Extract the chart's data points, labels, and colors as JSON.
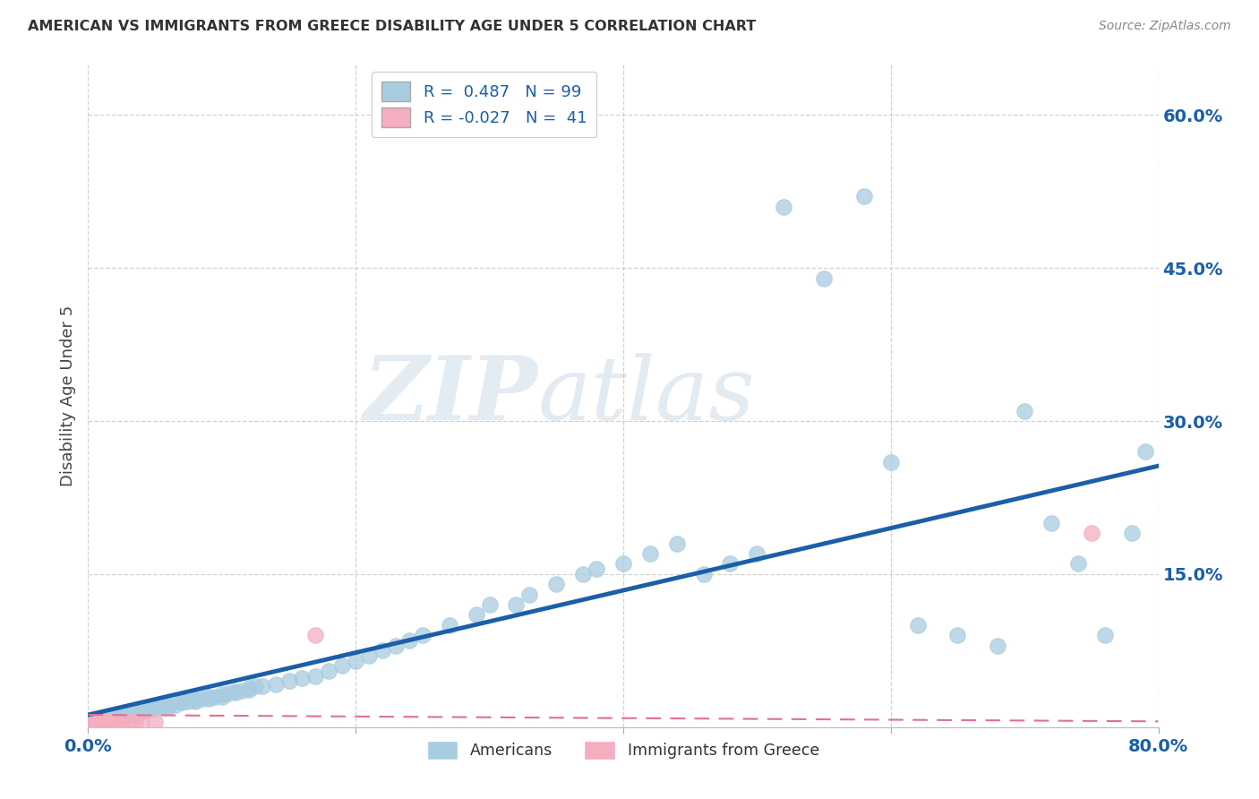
{
  "title": "AMERICAN VS IMMIGRANTS FROM GREECE DISABILITY AGE UNDER 5 CORRELATION CHART",
  "source": "Source: ZipAtlas.com",
  "ylabel": "Disability Age Under 5",
  "xlim": [
    0.0,
    0.8
  ],
  "ylim": [
    0.0,
    0.65
  ],
  "american_color": "#a8cce0",
  "greece_color": "#f4aec0",
  "regression_american_color": "#1a5fa8",
  "regression_greece_color": "#e07090",
  "R_american": 0.487,
  "N_american": 99,
  "R_greece": -0.027,
  "N_greece": 41,
  "watermark_zip": "ZIP",
  "watermark_atlas": "atlas",
  "background_color": "#ffffff",
  "grid_color": "#cccccc",
  "tick_color": "#1a5fa8",
  "title_color": "#333333",
  "source_color": "#888888",
  "am_x": [
    0.005,
    0.006,
    0.007,
    0.008,
    0.009,
    0.01,
    0.01,
    0.01,
    0.012,
    0.013,
    0.014,
    0.015,
    0.016,
    0.017,
    0.018,
    0.02,
    0.02,
    0.02,
    0.022,
    0.024,
    0.025,
    0.027,
    0.028,
    0.03,
    0.03,
    0.032,
    0.034,
    0.036,
    0.038,
    0.04,
    0.04,
    0.042,
    0.044,
    0.046,
    0.048,
    0.05,
    0.05,
    0.055,
    0.06,
    0.06,
    0.065,
    0.07,
    0.07,
    0.075,
    0.08,
    0.08,
    0.085,
    0.09,
    0.09,
    0.095,
    0.1,
    0.1,
    0.105,
    0.11,
    0.11,
    0.115,
    0.12,
    0.12,
    0.125,
    0.13,
    0.14,
    0.15,
    0.16,
    0.17,
    0.18,
    0.19,
    0.2,
    0.21,
    0.22,
    0.23,
    0.24,
    0.25,
    0.27,
    0.29,
    0.3,
    0.32,
    0.33,
    0.35,
    0.37,
    0.38,
    0.4,
    0.42,
    0.44,
    0.46,
    0.48,
    0.5,
    0.52,
    0.55,
    0.58,
    0.6,
    0.62,
    0.65,
    0.68,
    0.7,
    0.72,
    0.74,
    0.76,
    0.78,
    0.79
  ],
  "am_y": [
    0.005,
    0.005,
    0.006,
    0.007,
    0.007,
    0.007,
    0.008,
    0.008,
    0.008,
    0.009,
    0.009,
    0.01,
    0.01,
    0.01,
    0.01,
    0.01,
    0.01,
    0.01,
    0.01,
    0.01,
    0.01,
    0.012,
    0.012,
    0.012,
    0.013,
    0.013,
    0.014,
    0.014,
    0.015,
    0.015,
    0.016,
    0.016,
    0.017,
    0.017,
    0.018,
    0.018,
    0.02,
    0.02,
    0.02,
    0.022,
    0.022,
    0.024,
    0.025,
    0.025,
    0.025,
    0.027,
    0.028,
    0.028,
    0.03,
    0.03,
    0.03,
    0.032,
    0.033,
    0.034,
    0.035,
    0.036,
    0.037,
    0.038,
    0.04,
    0.04,
    0.042,
    0.045,
    0.048,
    0.05,
    0.055,
    0.06,
    0.065,
    0.07,
    0.075,
    0.08,
    0.085,
    0.09,
    0.1,
    0.11,
    0.12,
    0.12,
    0.13,
    0.14,
    0.15,
    0.155,
    0.16,
    0.17,
    0.18,
    0.15,
    0.16,
    0.17,
    0.51,
    0.44,
    0.52,
    0.26,
    0.1,
    0.09,
    0.08,
    0.31,
    0.2,
    0.16,
    0.09,
    0.19,
    0.27
  ],
  "gr_x": [
    0.001,
    0.001,
    0.002,
    0.002,
    0.003,
    0.003,
    0.003,
    0.004,
    0.004,
    0.004,
    0.005,
    0.005,
    0.005,
    0.005,
    0.006,
    0.006,
    0.006,
    0.007,
    0.007,
    0.007,
    0.008,
    0.008,
    0.009,
    0.009,
    0.01,
    0.01,
    0.01,
    0.012,
    0.013,
    0.015,
    0.016,
    0.018,
    0.02,
    0.022,
    0.025,
    0.03,
    0.035,
    0.04,
    0.05,
    0.17,
    0.75
  ],
  "gr_y": [
    0.003,
    0.004,
    0.003,
    0.004,
    0.003,
    0.004,
    0.005,
    0.003,
    0.004,
    0.005,
    0.003,
    0.004,
    0.005,
    0.006,
    0.003,
    0.004,
    0.005,
    0.003,
    0.004,
    0.006,
    0.003,
    0.005,
    0.003,
    0.005,
    0.003,
    0.004,
    0.006,
    0.004,
    0.005,
    0.005,
    0.004,
    0.005,
    0.005,
    0.004,
    0.005,
    0.005,
    0.005,
    0.005,
    0.005,
    0.09,
    0.19
  ],
  "slope_am": 0.305,
  "intercept_am": 0.012,
  "slope_gr": -0.008,
  "intercept_gr": 0.012
}
